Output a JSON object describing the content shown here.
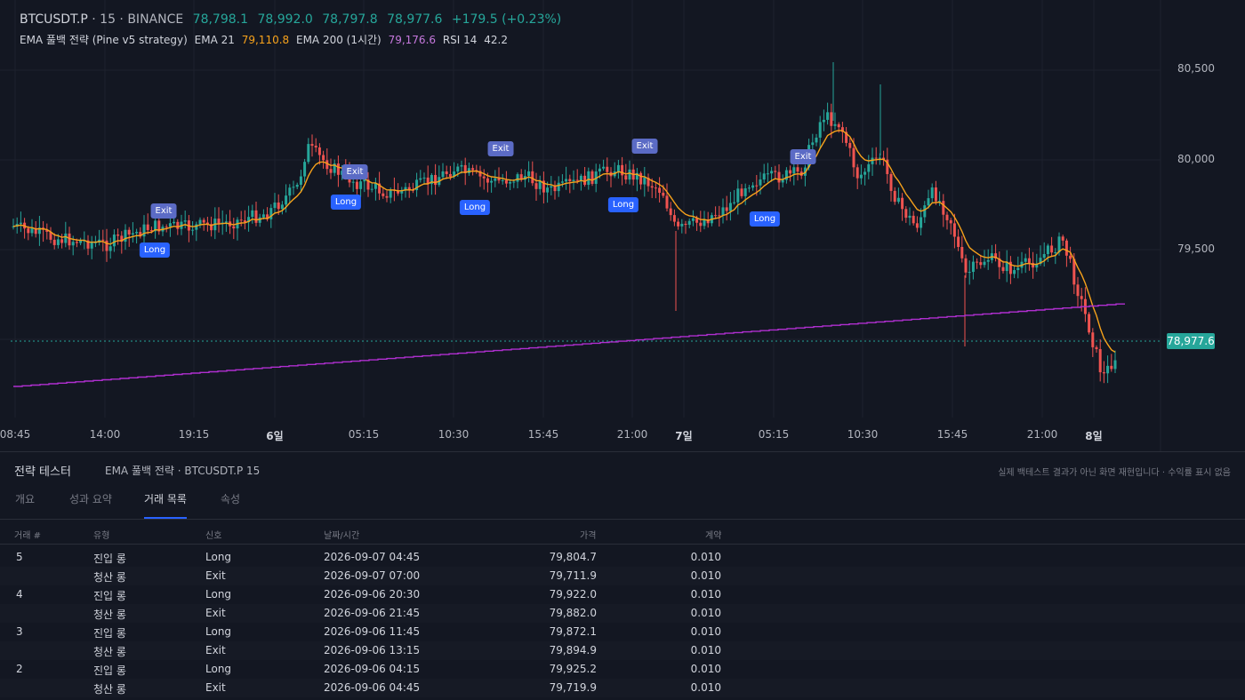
{
  "header": {
    "symbol": "BTCUSDT.P",
    "interval": "· 15 · BINANCE",
    "open": "78,798.1",
    "high": "78,992.0",
    "low": "78,797.8",
    "close": "78,977.6",
    "change": "+179.5 (+0.23%)"
  },
  "indicators": {
    "strategy_name": "EMA 풀백 전략 (Pine v5 strategy)",
    "ema21_label": "EMA 21",
    "ema21_value": "79,110.8",
    "ema200_label": "EMA 200 (1시간)",
    "ema200_value": "79,176.6",
    "rsi_label": "RSI 14",
    "rsi_value": "42.2"
  },
  "price_axis": [
    "80,500",
    "80,000",
    "79,500"
  ],
  "last_price_tag": "78,977.6",
  "time_axis": [
    {
      "label": "08:45",
      "day": false
    },
    {
      "label": "14:00",
      "day": false
    },
    {
      "label": "19:15",
      "day": false
    },
    {
      "label": "6일",
      "day": true
    },
    {
      "label": "05:15",
      "day": false
    },
    {
      "label": "10:30",
      "day": false
    },
    {
      "label": "15:45",
      "day": false
    },
    {
      "label": "21:00",
      "day": false
    },
    {
      "label": "7일",
      "day": true
    },
    {
      "label": "05:15",
      "day": false
    },
    {
      "label": "10:30",
      "day": false
    },
    {
      "label": "15:45",
      "day": false
    },
    {
      "label": "21:00",
      "day": false
    },
    {
      "label": "8일",
      "day": true
    }
  ],
  "markers": [
    {
      "type": "exit",
      "label": "Exit"
    },
    {
      "type": "long",
      "label": "Long"
    },
    {
      "type": "exit",
      "label": "Exit"
    },
    {
      "type": "long",
      "label": "Long"
    },
    {
      "type": "exit",
      "label": "Exit"
    },
    {
      "type": "long",
      "label": "Long"
    },
    {
      "type": "exit",
      "label": "Exit"
    },
    {
      "type": "long",
      "label": "Long"
    },
    {
      "type": "exit",
      "label": "Exit"
    },
    {
      "type": "long",
      "label": "Long"
    }
  ],
  "colors": {
    "up": "#26a69a",
    "down": "#ef5350",
    "ema21": "#f7a21b",
    "ema200": "#b02fd0",
    "accent": "#2962ff"
  },
  "panel": {
    "title": "전략 테스터",
    "subtitle": "EMA 풀백 전략 · BTCUSDT.P 15",
    "note": "실제 백테스트 결과가 아닌 화면 재현입니다 · 수익률 표시 없음",
    "tabs": [
      "개요",
      "성과 요약",
      "거래 목록",
      "속성"
    ],
    "active_tab": 2,
    "columns": [
      "거래 #",
      "유형",
      "신호",
      "날짜/시간",
      "가격",
      "계약"
    ],
    "rows": [
      {
        "no": "5",
        "type": "진입 롱",
        "signal": "Long",
        "datetime": "2026-09-07 04:45",
        "price": "79,804.7",
        "qty": "0.010"
      },
      {
        "no": "",
        "type": "청산 롱",
        "signal": "Exit",
        "datetime": "2026-09-07 07:00",
        "price": "79,711.9",
        "qty": "0.010"
      },
      {
        "no": "4",
        "type": "진입 롱",
        "signal": "Long",
        "datetime": "2026-09-06 20:30",
        "price": "79,922.0",
        "qty": "0.010"
      },
      {
        "no": "",
        "type": "청산 롱",
        "signal": "Exit",
        "datetime": "2026-09-06 21:45",
        "price": "79,882.0",
        "qty": "0.010"
      },
      {
        "no": "3",
        "type": "진입 롱",
        "signal": "Long",
        "datetime": "2026-09-06 11:45",
        "price": "79,872.1",
        "qty": "0.010"
      },
      {
        "no": "",
        "type": "청산 롱",
        "signal": "Exit",
        "datetime": "2026-09-06 13:15",
        "price": "79,894.9",
        "qty": "0.010"
      },
      {
        "no": "2",
        "type": "진입 롱",
        "signal": "Long",
        "datetime": "2026-09-06 04:15",
        "price": "79,925.2",
        "qty": "0.010"
      },
      {
        "no": "",
        "type": "청산 롱",
        "signal": "Exit",
        "datetime": "2026-09-06 04:45",
        "price": "79,719.9",
        "qty": "0.010"
      }
    ]
  }
}
